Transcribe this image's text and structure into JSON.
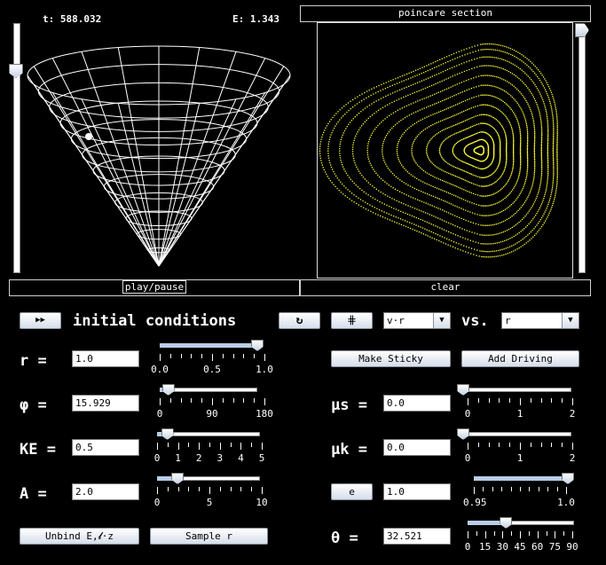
{
  "header": {
    "time": "t: 588.032",
    "energy": "E: 1.343"
  },
  "poincare": {
    "title": "poincare section"
  },
  "controls": {
    "play_pause": "play/pause",
    "clear": "clear",
    "initial_conditions": "initial conditions",
    "reset_symbol": "↻",
    "step_symbol": "⋕",
    "vs_label": "vs.",
    "axis_y_select": "v·r",
    "axis_x_select": "r",
    "make_sticky": "Make Sticky",
    "add_driving": "Add Driving",
    "unbind": "Unbind E,𝓵·z",
    "sample_r": "Sample r",
    "e_button": "e"
  },
  "params_left": [
    {
      "label": "r =",
      "value": "1.0",
      "ticks": [
        "0.0",
        "0.5",
        "1.0"
      ],
      "slider_fraction": 1.0
    },
    {
      "label": "φ =",
      "value": "15.929",
      "ticks": [
        "0",
        "90",
        "180"
      ],
      "slider_fraction": 0.088
    },
    {
      "label": "KE =",
      "value": "0.5",
      "ticks": [
        "0",
        "1",
        "2",
        "3",
        "4",
        "5"
      ],
      "slider_fraction": 0.1
    },
    {
      "label": "A =",
      "value": "2.0",
      "ticks": [
        "0",
        "5",
        "10"
      ],
      "slider_fraction": 0.2
    }
  ],
  "params_right": [
    {
      "label": "μs =",
      "value": "0.0",
      "ticks": [
        "0",
        "1",
        "2"
      ],
      "slider_fraction": 0.0
    },
    {
      "label": "μk =",
      "value": "0.0",
      "ticks": [
        "0",
        "1",
        "2"
      ],
      "slider_fraction": 0.0
    },
    {
      "label": "",
      "value": "1.0",
      "ticks": [
        "0.95",
        "1.0"
      ],
      "slider_fraction": 1.0
    },
    {
      "label": "θ =",
      "value": "32.521",
      "ticks": [
        "0",
        "15",
        "30",
        "45",
        "60",
        "75",
        "90"
      ],
      "slider_fraction": 0.361
    }
  ],
  "colors": {
    "background": "#000000",
    "poincare_points": "#ffff33",
    "cone_lines": "#ffffff"
  },
  "icons": {
    "fast_forward": "fast-forward-icon",
    "reset": "reset-icon",
    "step": "step-icon"
  }
}
